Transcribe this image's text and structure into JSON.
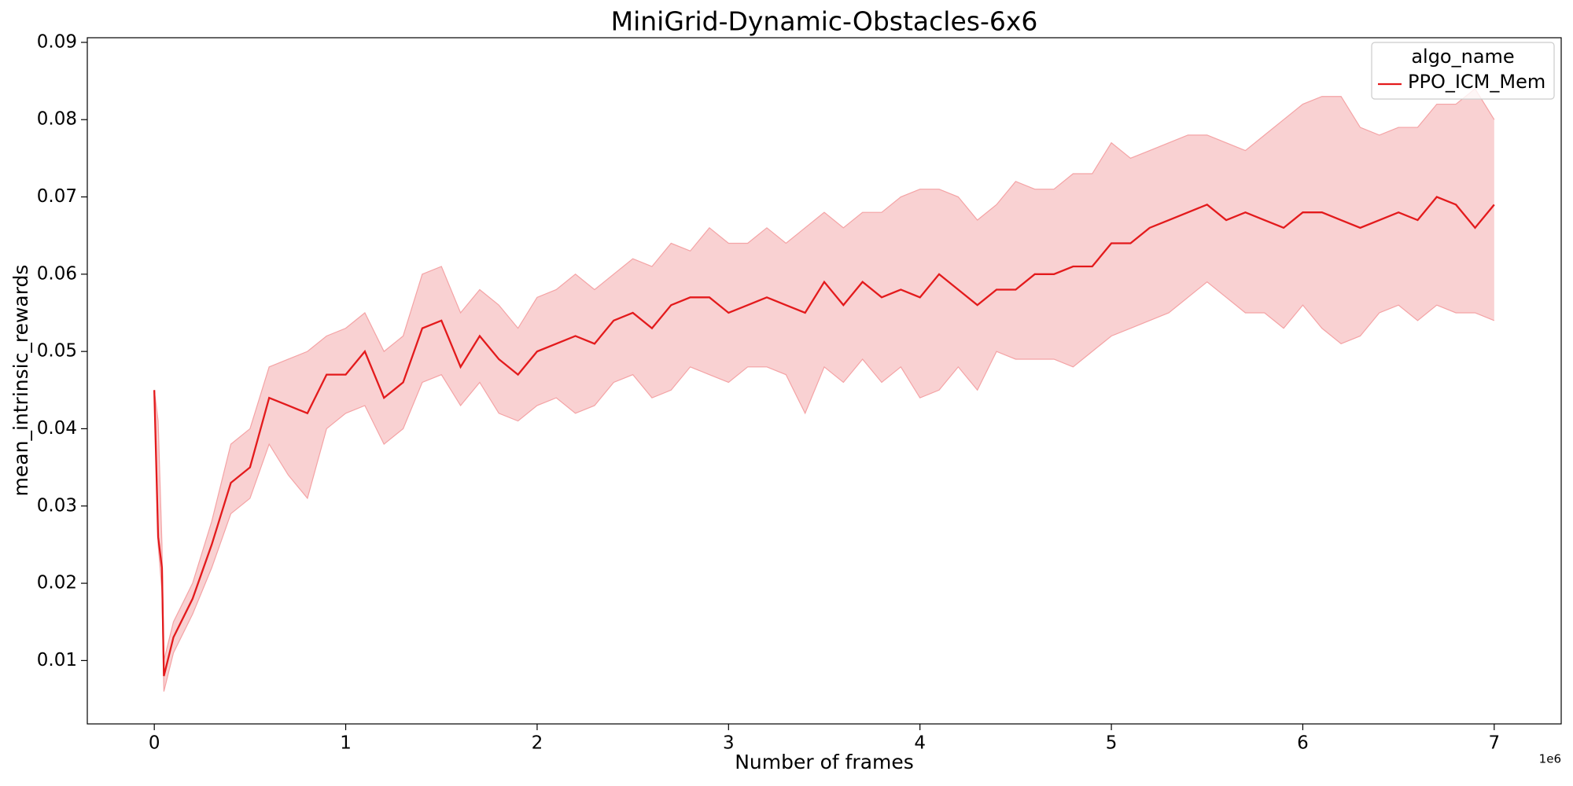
{
  "chart_data": {
    "type": "line",
    "title": "MiniGrid-Dynamic-Obstacles-6x6",
    "x_label": "Number of frames",
    "y_label": "mean_intrinsic_rewards",
    "x_offset_label": "1e6",
    "legend_title": "algo_name",
    "legend_loc": "upper right",
    "xlim": [
      -0.35,
      7.35
    ],
    "ylim": [
      0.0018,
      0.0906
    ],
    "xticks": [
      0,
      1,
      2,
      3,
      4,
      5,
      6,
      7
    ],
    "yticks": [
      0.01,
      0.02,
      0.03,
      0.04,
      0.05,
      0.06,
      0.07,
      0.08,
      0.09
    ],
    "x": [
      0,
      0.02,
      0.04,
      0.05,
      0.1,
      0.2,
      0.3,
      0.4,
      0.5,
      0.6,
      0.7,
      0.8,
      0.9,
      1.0,
      1.1,
      1.2,
      1.3,
      1.4,
      1.5,
      1.6,
      1.7,
      1.8,
      1.9,
      2.0,
      2.1,
      2.2,
      2.3,
      2.4,
      2.5,
      2.6,
      2.7,
      2.8,
      2.9,
      3.0,
      3.1,
      3.2,
      3.3,
      3.4,
      3.5,
      3.6,
      3.7,
      3.8,
      3.9,
      4.0,
      4.1,
      4.2,
      4.3,
      4.4,
      4.5,
      4.6,
      4.7,
      4.8,
      4.9,
      5.0,
      5.1,
      5.2,
      5.3,
      5.4,
      5.5,
      5.6,
      5.7,
      5.8,
      5.9,
      6.0,
      6.1,
      6.2,
      6.3,
      6.4,
      6.5,
      6.6,
      6.7,
      6.8,
      6.9,
      7.0
    ],
    "series": [
      {
        "name": "PPO_ICM_Mem",
        "color": "#e31a1c",
        "band_color": "#f4a3a5",
        "values": [
          0.045,
          0.026,
          0.022,
          0.008,
          0.013,
          0.018,
          0.025,
          0.033,
          0.035,
          0.044,
          0.043,
          0.042,
          0.047,
          0.047,
          0.05,
          0.044,
          0.046,
          0.053,
          0.054,
          0.048,
          0.052,
          0.049,
          0.047,
          0.05,
          0.051,
          0.052,
          0.051,
          0.054,
          0.055,
          0.053,
          0.056,
          0.057,
          0.057,
          0.055,
          0.056,
          0.057,
          0.056,
          0.055,
          0.059,
          0.056,
          0.059,
          0.057,
          0.058,
          0.057,
          0.06,
          0.058,
          0.056,
          0.058,
          0.058,
          0.06,
          0.06,
          0.061,
          0.061,
          0.064,
          0.064,
          0.066,
          0.067,
          0.068,
          0.069,
          0.067,
          0.068,
          0.067,
          0.066,
          0.068,
          0.068,
          0.067,
          0.066,
          0.067,
          0.068,
          0.067,
          0.07,
          0.069,
          0.066,
          0.069
        ],
        "lower": [
          0.045,
          0.025,
          0.019,
          0.006,
          0.011,
          0.016,
          0.022,
          0.029,
          0.031,
          0.038,
          0.034,
          0.031,
          0.04,
          0.042,
          0.043,
          0.038,
          0.04,
          0.046,
          0.047,
          0.043,
          0.046,
          0.042,
          0.041,
          0.043,
          0.044,
          0.042,
          0.043,
          0.046,
          0.047,
          0.044,
          0.045,
          0.048,
          0.047,
          0.046,
          0.048,
          0.048,
          0.047,
          0.042,
          0.048,
          0.046,
          0.049,
          0.046,
          0.048,
          0.044,
          0.045,
          0.048,
          0.045,
          0.05,
          0.049,
          0.049,
          0.049,
          0.048,
          0.05,
          0.052,
          0.053,
          0.054,
          0.055,
          0.057,
          0.059,
          0.057,
          0.055,
          0.055,
          0.053,
          0.056,
          0.053,
          0.051,
          0.052,
          0.055,
          0.056,
          0.054,
          0.056,
          0.055,
          0.055,
          0.054
        ],
        "upper": [
          0.045,
          0.041,
          0.025,
          0.01,
          0.015,
          0.02,
          0.028,
          0.038,
          0.04,
          0.048,
          0.049,
          0.05,
          0.052,
          0.053,
          0.055,
          0.05,
          0.052,
          0.06,
          0.061,
          0.055,
          0.058,
          0.056,
          0.053,
          0.057,
          0.058,
          0.06,
          0.058,
          0.06,
          0.062,
          0.061,
          0.064,
          0.063,
          0.066,
          0.064,
          0.064,
          0.066,
          0.064,
          0.066,
          0.068,
          0.066,
          0.068,
          0.068,
          0.07,
          0.071,
          0.071,
          0.07,
          0.067,
          0.069,
          0.072,
          0.071,
          0.071,
          0.073,
          0.073,
          0.077,
          0.075,
          0.076,
          0.077,
          0.078,
          0.078,
          0.077,
          0.076,
          0.078,
          0.08,
          0.082,
          0.083,
          0.083,
          0.079,
          0.078,
          0.079,
          0.079,
          0.082,
          0.082,
          0.084,
          0.08
        ]
      }
    ]
  }
}
